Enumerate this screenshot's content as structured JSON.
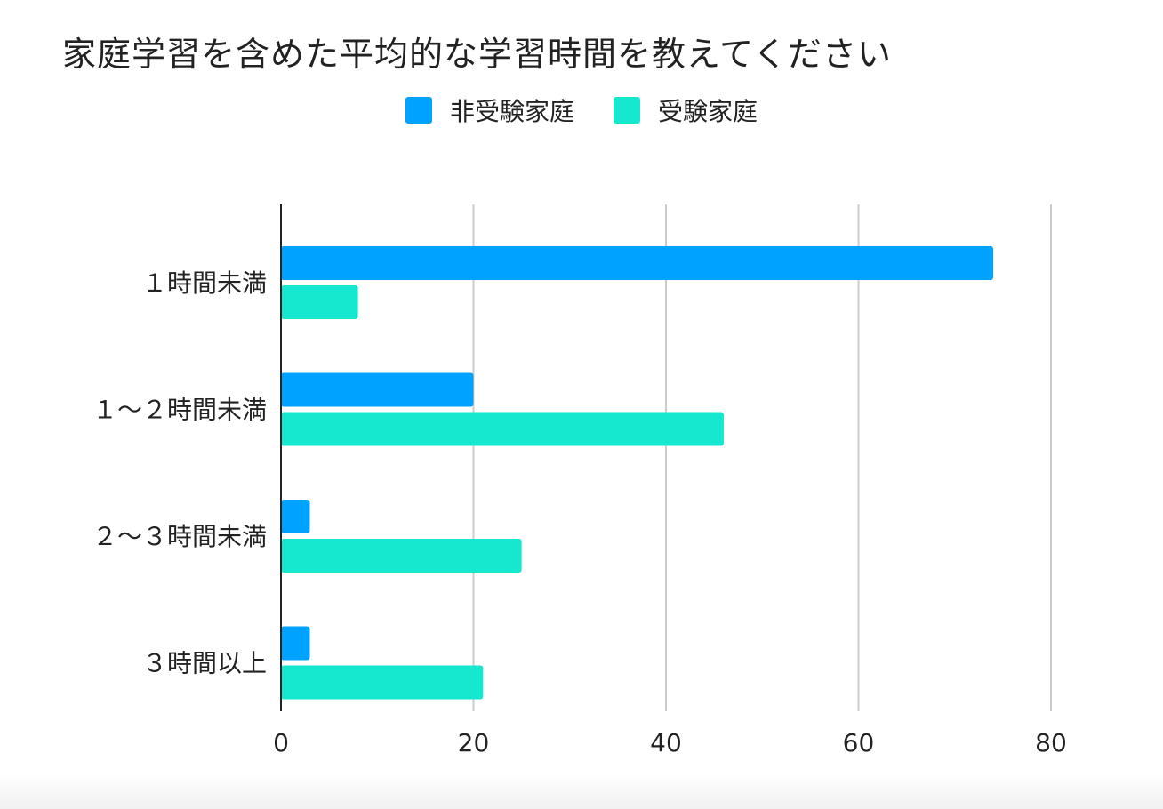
{
  "chart_data": {
    "type": "bar",
    "orientation": "horizontal",
    "title": "家庭学習を含めた平均的な学習時間を教えてください",
    "categories": [
      "１時間未満",
      "１～２時間未満",
      "２～３時間未満",
      "３時間以上"
    ],
    "series": [
      {
        "name": "非受験家庭",
        "color": "#00A2FF",
        "values": [
          74,
          20,
          3,
          3
        ]
      },
      {
        "name": "受験家庭",
        "color": "#16E7CF",
        "values": [
          8,
          46,
          25,
          21
        ]
      }
    ],
    "xlim": [
      0,
      80
    ],
    "xticks": [
      0,
      20,
      40,
      60,
      80
    ],
    "grid": true,
    "legend": "top-center",
    "xlabel": "",
    "ylabel": ""
  }
}
